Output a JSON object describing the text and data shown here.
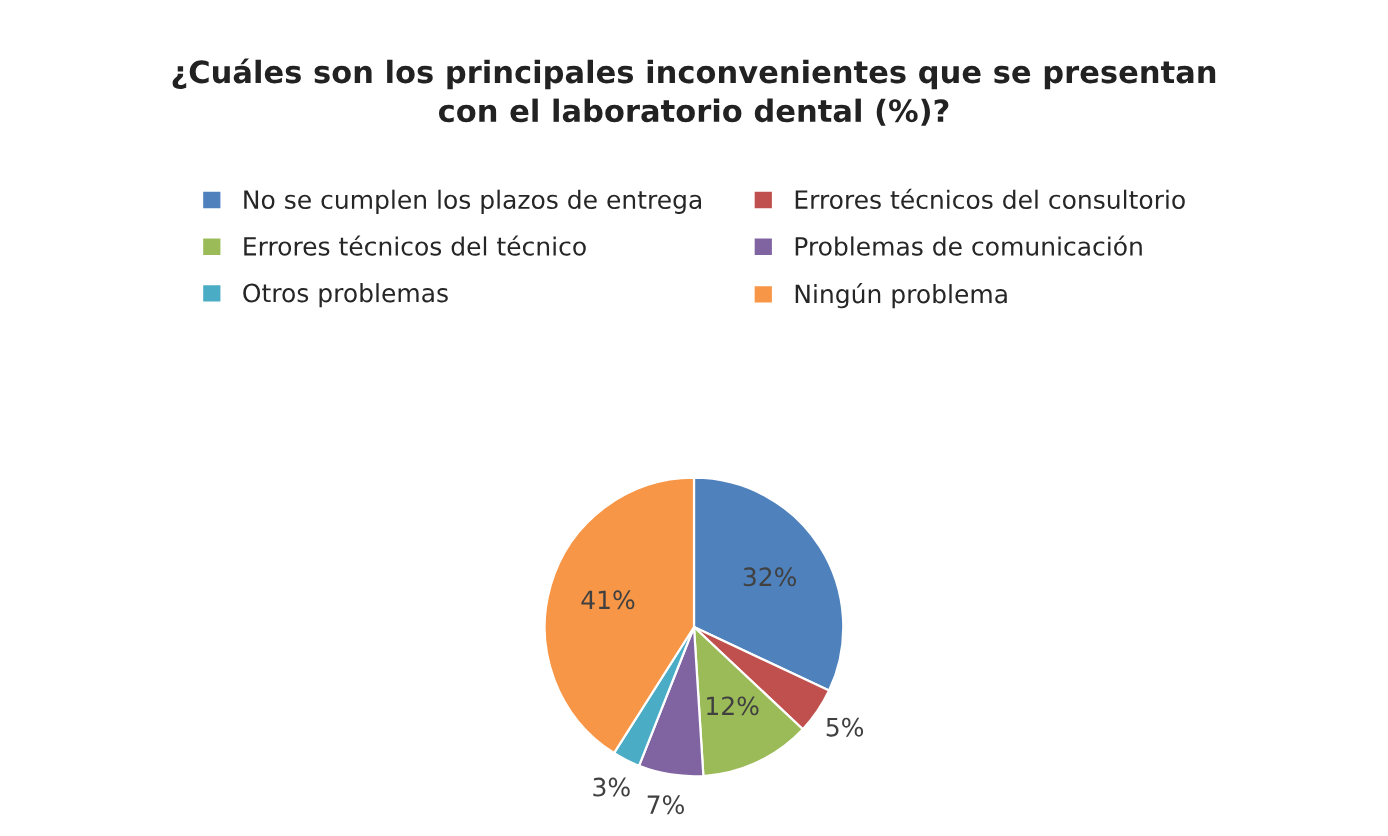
{
  "chart_data": {
    "type": "pie",
    "title": "¿Cuáles son los principales inconvenientes que se presentan\ncon el laboratorio dental (%)?",
    "categories": [
      "No se cumplen los plazos de entrega",
      "Errores técnicos del consultorio",
      "Errores técnicos del técnico",
      "Problemas de comunicación",
      "Otros problemas",
      "Ningún problema"
    ],
    "values": [
      32,
      5,
      12,
      7,
      3,
      41
    ],
    "colors": [
      "#4f81bd",
      "#c0504d",
      "#9bbb59",
      "#8064a2",
      "#4bacc6",
      "#f79646"
    ],
    "value_labels": [
      "32%",
      "5%",
      "12%",
      "7%",
      "3%",
      "41%"
    ],
    "legend": "top"
  }
}
